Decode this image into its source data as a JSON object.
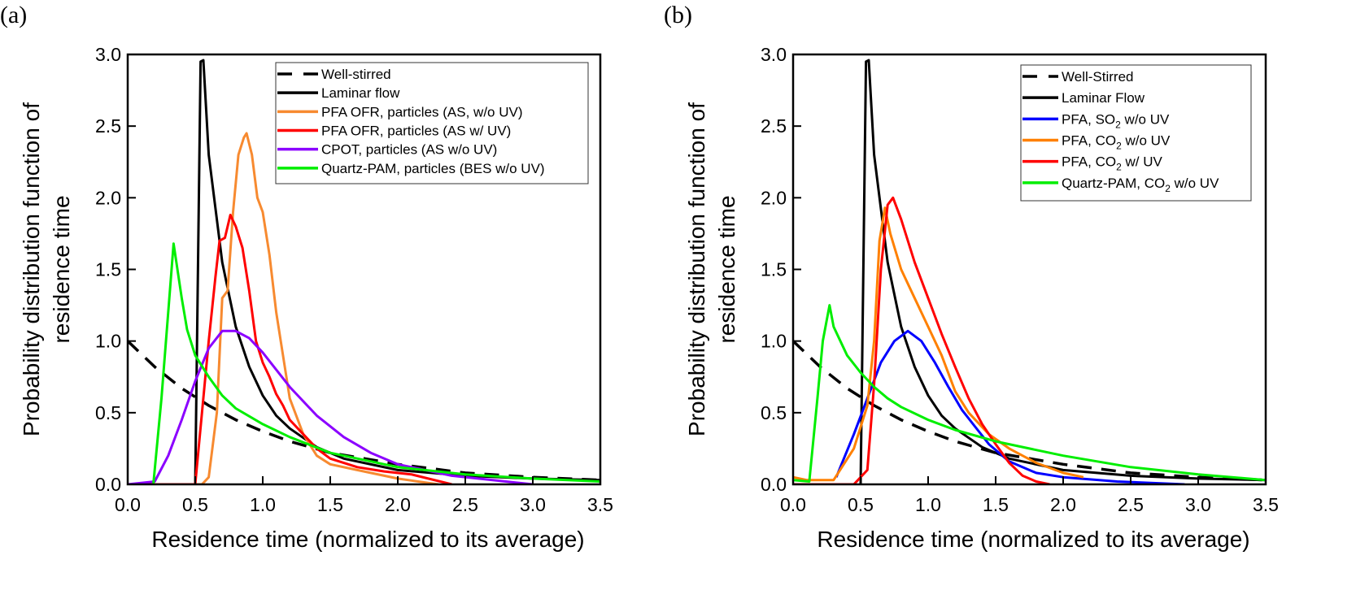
{
  "chart_data": [
    {
      "panel": "(a)",
      "type": "line",
      "xlabel": "Residence time (normalized to its average)",
      "ylabel": [
        "Probability distribution function of",
        "residence time"
      ],
      "xlim": [
        0,
        3.5
      ],
      "ylim": [
        0,
        3.0
      ],
      "xticks": [
        "0.0",
        "0.5",
        "1.0",
        "1.5",
        "2.0",
        "2.5",
        "3.0",
        "3.5"
      ],
      "yticks": [
        "0.0",
        "0.5",
        "1.0",
        "1.5",
        "2.0",
        "2.5",
        "3.0"
      ],
      "grid": false,
      "legend_position": "top-right",
      "series": [
        {
          "name": "Well-stirred",
          "color": "#000000",
          "dash": true,
          "x": [
            0,
            0.2,
            0.4,
            0.6,
            0.8,
            1.0,
            1.2,
            1.5,
            2.0,
            2.5,
            3.0,
            3.5
          ],
          "y": [
            1.0,
            0.82,
            0.67,
            0.55,
            0.45,
            0.37,
            0.3,
            0.22,
            0.14,
            0.08,
            0.05,
            0.03
          ]
        },
        {
          "name": "Laminar flow",
          "color": "#000000",
          "dash": false,
          "x": [
            0.5,
            0.54,
            0.56,
            0.6,
            0.7,
            0.8,
            0.9,
            1.0,
            1.1,
            1.2,
            1.4,
            1.6,
            2.0,
            2.5,
            3.0,
            3.5
          ],
          "y": [
            0,
            2.95,
            2.96,
            2.3,
            1.55,
            1.1,
            0.82,
            0.62,
            0.48,
            0.39,
            0.26,
            0.18,
            0.1,
            0.06,
            0.04,
            0.03
          ]
        },
        {
          "name": "PFA OFR, particles (AS, w/o UV)",
          "color": "#f78a30",
          "dash": false,
          "x": [
            0,
            0.55,
            0.6,
            0.66,
            0.7,
            0.74,
            0.78,
            0.82,
            0.86,
            0.88,
            0.92,
            0.96,
            1.0,
            1.05,
            1.1,
            1.15,
            1.2,
            1.3,
            1.4,
            1.5,
            1.7,
            2.0,
            2.3
          ],
          "y": [
            0,
            0,
            0.05,
            0.5,
            1.3,
            1.35,
            1.9,
            2.3,
            2.42,
            2.45,
            2.3,
            2.0,
            1.9,
            1.6,
            1.2,
            0.9,
            0.6,
            0.35,
            0.2,
            0.14,
            0.1,
            0.04,
            0.0
          ]
        },
        {
          "name": "PFA OFR, particles (AS w/ UV)",
          "color": "#ff0000",
          "dash": false,
          "x": [
            0,
            0.5,
            0.55,
            0.6,
            0.65,
            0.68,
            0.72,
            0.76,
            0.8,
            0.85,
            0.9,
            0.95,
            1.0,
            1.05,
            1.1,
            1.15,
            1.2,
            1.3,
            1.4,
            1.5,
            1.7,
            1.9,
            2.1,
            2.4
          ],
          "y": [
            0,
            0,
            0.5,
            1.0,
            1.45,
            1.7,
            1.72,
            1.88,
            1.8,
            1.65,
            1.35,
            1.0,
            0.85,
            0.75,
            0.63,
            0.55,
            0.45,
            0.35,
            0.25,
            0.18,
            0.12,
            0.09,
            0.07,
            0.0
          ]
        },
        {
          "name": "CPOT, particles (AS w/o UV)",
          "color": "#8b00ff",
          "dash": false,
          "x": [
            0,
            0.2,
            0.3,
            0.4,
            0.5,
            0.6,
            0.7,
            0.8,
            0.9,
            1.0,
            1.1,
            1.2,
            1.4,
            1.6,
            1.8,
            2.0,
            2.4,
            3.0
          ],
          "y": [
            0,
            0.02,
            0.2,
            0.45,
            0.72,
            0.95,
            1.07,
            1.07,
            1.02,
            0.92,
            0.8,
            0.68,
            0.48,
            0.33,
            0.22,
            0.14,
            0.06,
            0.0
          ]
        },
        {
          "name": "Quartz-PAM, particles (BES w/o UV)",
          "color": "#00ee00",
          "dash": false,
          "x": [
            0.19,
            0.25,
            0.3,
            0.34,
            0.4,
            0.44,
            0.5,
            0.6,
            0.7,
            0.8,
            1.0,
            1.2,
            1.5,
            2.0,
            2.5,
            3.0,
            3.5
          ],
          "y": [
            0,
            0.6,
            1.2,
            1.68,
            1.3,
            1.08,
            0.9,
            0.75,
            0.62,
            0.53,
            0.42,
            0.33,
            0.22,
            0.12,
            0.07,
            0.04,
            0.02
          ]
        }
      ]
    },
    {
      "panel": "(b)",
      "type": "line",
      "xlabel": "Residence time (normalized to its average)",
      "ylabel": [
        "Probability distribution function of",
        "residence time"
      ],
      "xlim": [
        0,
        3.5
      ],
      "ylim": [
        0,
        3.0
      ],
      "xticks": [
        "0.0",
        "0.5",
        "1.0",
        "1.5",
        "2.0",
        "2.5",
        "3.0",
        "3.5"
      ],
      "yticks": [
        "0.0",
        "0.5",
        "1.0",
        "1.5",
        "2.0",
        "2.5",
        "3.0"
      ],
      "grid": false,
      "legend_position": "top-right",
      "series": [
        {
          "name": "Well-Stirred",
          "label_parts": [
            "Well-Stirred"
          ],
          "color": "#000000",
          "dash": true,
          "x": [
            0,
            0.2,
            0.4,
            0.6,
            0.8,
            1.0,
            1.2,
            1.5,
            2.0,
            2.5,
            3.0,
            3.5
          ],
          "y": [
            1.0,
            0.82,
            0.67,
            0.55,
            0.45,
            0.37,
            0.3,
            0.22,
            0.14,
            0.08,
            0.05,
            0.03
          ]
        },
        {
          "name": "Laminar Flow",
          "label_parts": [
            "Laminar Flow"
          ],
          "color": "#000000",
          "dash": false,
          "x": [
            0.5,
            0.54,
            0.56,
            0.6,
            0.7,
            0.8,
            0.9,
            1.0,
            1.1,
            1.2,
            1.4,
            1.6,
            2.0,
            2.5,
            3.0,
            3.5
          ],
          "y": [
            0,
            2.95,
            2.96,
            2.3,
            1.55,
            1.1,
            0.82,
            0.62,
            0.48,
            0.39,
            0.26,
            0.18,
            0.1,
            0.06,
            0.04,
            0.03
          ]
        },
        {
          "name": "PFA, SO2 w/o UV",
          "label_parts": [
            "PFA, SO",
            "2",
            " w/o UV"
          ],
          "color": "#0000ff",
          "dash": false,
          "x": [
            0.32,
            0.35,
            0.45,
            0.55,
            0.65,
            0.75,
            0.85,
            0.95,
            1.05,
            1.15,
            1.25,
            1.35,
            1.45,
            1.6,
            1.8,
            2.0,
            2.4,
            2.9
          ],
          "y": [
            0.05,
            0.12,
            0.35,
            0.6,
            0.85,
            1.0,
            1.07,
            1.0,
            0.85,
            0.68,
            0.52,
            0.4,
            0.28,
            0.16,
            0.08,
            0.05,
            0.02,
            0.0
          ]
        },
        {
          "name": "PFA, CO2 w/o UV",
          "label_parts": [
            "PFA, CO",
            "2",
            " w/o UV"
          ],
          "color": "#ff8000",
          "dash": false,
          "x": [
            0,
            0.1,
            0.3,
            0.45,
            0.55,
            0.6,
            0.64,
            0.68,
            0.72,
            0.8,
            0.9,
            1.0,
            1.1,
            1.2,
            1.3,
            1.45,
            1.6,
            1.8,
            2.0,
            2.15
          ],
          "y": [
            0.05,
            0.03,
            0.03,
            0.25,
            0.55,
            1.0,
            1.7,
            1.93,
            1.75,
            1.5,
            1.3,
            1.1,
            0.9,
            0.65,
            0.5,
            0.35,
            0.25,
            0.15,
            0.08,
            0.05
          ]
        },
        {
          "name": "PFA, CO2 w/ UV",
          "label_parts": [
            "PFA, CO",
            "2",
            " w/ UV"
          ],
          "color": "#ff0000",
          "dash": false,
          "x": [
            0,
            0.45,
            0.55,
            0.6,
            0.65,
            0.7,
            0.74,
            0.8,
            0.9,
            1.0,
            1.1,
            1.2,
            1.3,
            1.4,
            1.5,
            1.6,
            1.7,
            1.8,
            1.9
          ],
          "y": [
            0,
            0,
            0.1,
            0.7,
            1.5,
            1.95,
            2.0,
            1.85,
            1.55,
            1.3,
            1.05,
            0.82,
            0.6,
            0.42,
            0.28,
            0.15,
            0.06,
            0.02,
            0.0
          ]
        },
        {
          "name": "Quartz-PAM, CO2 w/o UV",
          "label_parts": [
            "Quartz-PAM, CO",
            "2",
            " w/o UV"
          ],
          "color": "#00ee00",
          "dash": false,
          "x": [
            0,
            0.12,
            0.18,
            0.22,
            0.27,
            0.3,
            0.4,
            0.5,
            0.6,
            0.7,
            0.8,
            1.0,
            1.2,
            1.5,
            2.0,
            2.5,
            3.0,
            3.5
          ],
          "y": [
            0.03,
            0.02,
            0.6,
            1.0,
            1.25,
            1.1,
            0.9,
            0.78,
            0.68,
            0.6,
            0.54,
            0.45,
            0.38,
            0.3,
            0.2,
            0.12,
            0.07,
            0.03
          ]
        }
      ]
    }
  ]
}
